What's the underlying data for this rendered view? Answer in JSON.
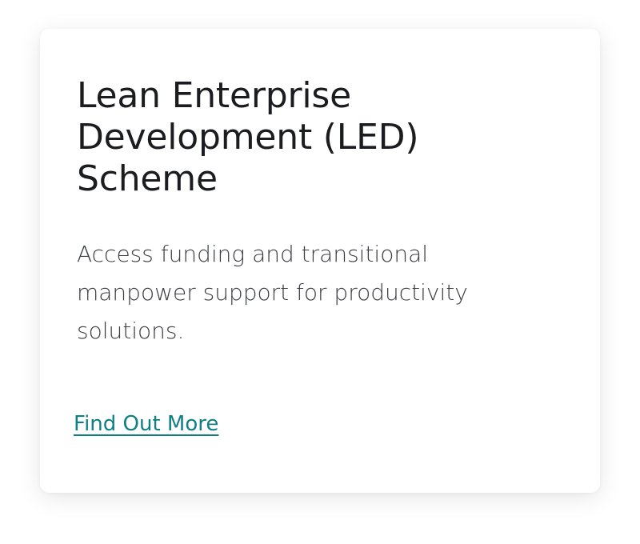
{
  "card": {
    "title": "Lean Enterprise Development (LED) Scheme",
    "description": "Access funding and transitional manpower support for productivity solutions.",
    "link_label": "Find Out More"
  },
  "colors": {
    "title": "#1b1c1f",
    "body_text": "#3a3d42",
    "link": "#0f7f86",
    "card_background": "#ffffff"
  }
}
